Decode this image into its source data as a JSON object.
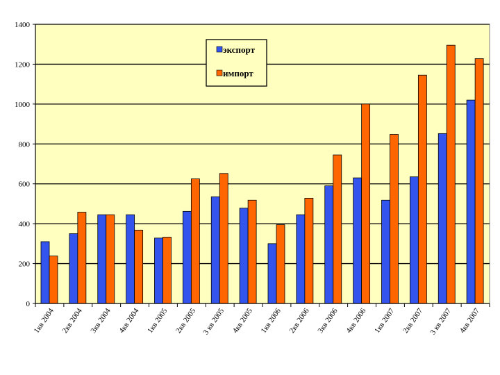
{
  "chart_data": {
    "type": "bar",
    "title": "",
    "xlabel": "",
    "ylabel": "",
    "ylim": [
      0,
      1400
    ],
    "yticks": [
      0,
      200,
      400,
      600,
      800,
      1000,
      1200,
      1400
    ],
    "grid": true,
    "plot_background": "#ffffc0",
    "legend_position": "top-center",
    "categories": [
      "1кв 2004",
      "2кв 2004",
      "3кв 2004",
      "4кв 2004",
      "1кв 2005",
      "2кв 2005",
      "3 кв 2005",
      "4кв 2005",
      "1кв 2006",
      "2кв 2006",
      "3кв 2006",
      "4кв 2006",
      "1кв 2007",
      "2кв 2007",
      "3 кв 2007",
      "4кв 2007"
    ],
    "series": [
      {
        "name": "экспорт",
        "color": "#3355ee",
        "values": [
          310,
          350,
          445,
          445,
          328,
          462,
          535,
          478,
          300,
          445,
          590,
          630,
          518,
          635,
          852,
          1020
        ]
      },
      {
        "name": "импорт",
        "color": "#ff6600",
        "values": [
          238,
          458,
          445,
          368,
          333,
          625,
          652,
          518,
          395,
          528,
          745,
          1000,
          848,
          1145,
          1295,
          1228
        ]
      }
    ]
  }
}
